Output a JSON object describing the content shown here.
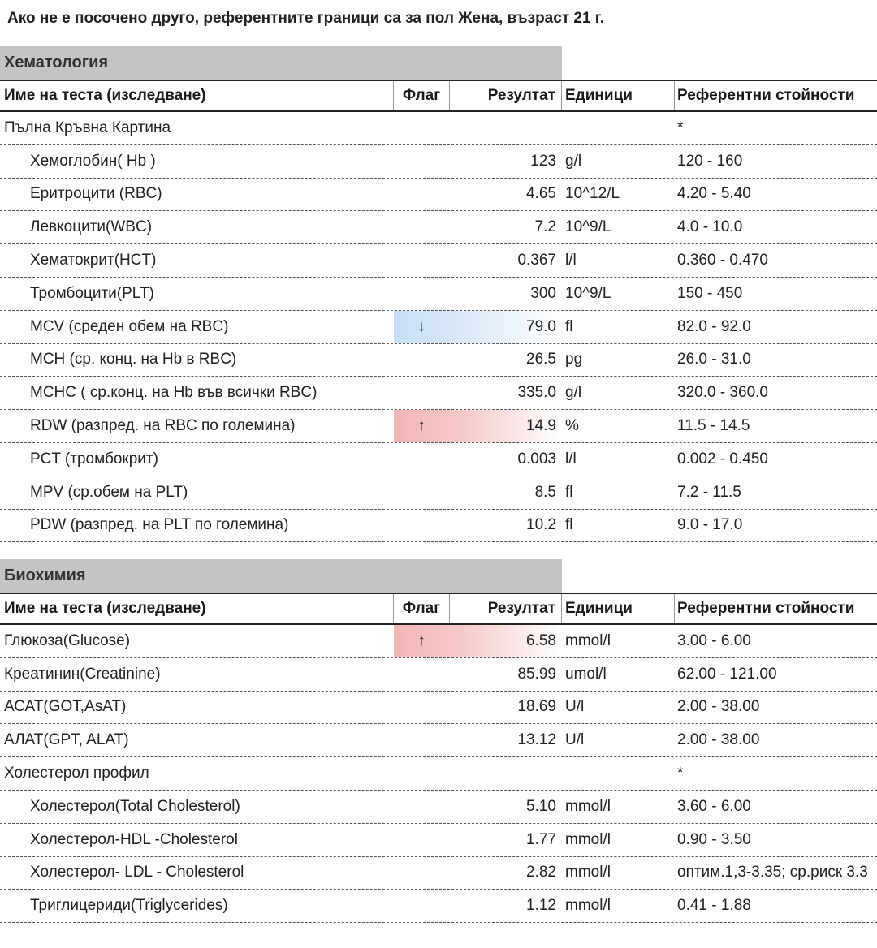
{
  "note": "Ако не е посочено друго, референтните граници са за пол Жена, възраст 21 г.",
  "columns": {
    "name": "Име на теста (изследване)",
    "flag": "Флаг",
    "result": "Резултат",
    "units": "Единици",
    "reference": "Референтни стойности"
  },
  "flag_colors": {
    "low": "#c7dff5",
    "high": "#f2b6b6"
  },
  "sections": [
    {
      "title": "Хематология",
      "rows": [
        {
          "name": "Пълна Кръвна Картина",
          "flag": "",
          "result": "",
          "units": "",
          "reference": "*",
          "sub": false,
          "level": ""
        },
        {
          "name": "Хемоглобин( Hb )",
          "flag": "",
          "result": "123",
          "units": "g/l",
          "reference": "120 - 160",
          "sub": true,
          "level": ""
        },
        {
          "name": "Еритроцити (RBC)",
          "flag": "",
          "result": "4.65",
          "units": "10^12/L",
          "reference": "4.20 - 5.40",
          "sub": true,
          "level": ""
        },
        {
          "name": "Левкоцити(WBC)",
          "flag": "",
          "result": "7.2",
          "units": "10^9/L",
          "reference": "4.0 - 10.0",
          "sub": true,
          "level": ""
        },
        {
          "name": "Хематокрит(HCT)",
          "flag": "",
          "result": "0.367",
          "units": "l/l",
          "reference": "0.360 - 0.470",
          "sub": true,
          "level": ""
        },
        {
          "name": "Тромбоцити(PLT)",
          "flag": "",
          "result": "300",
          "units": "10^9/L",
          "reference": "150 - 450",
          "sub": true,
          "level": ""
        },
        {
          "name": "MCV (среден обем на RBC)",
          "flag": "↓",
          "result": "79.0",
          "units": "fl",
          "reference": "82.0 - 92.0",
          "sub": true,
          "level": "low"
        },
        {
          "name": "MCH (ср. конц. на Hb в RBC)",
          "flag": "",
          "result": "26.5",
          "units": "pg",
          "reference": "26.0 - 31.0",
          "sub": true,
          "level": ""
        },
        {
          "name": "MCHC ( ср.конц. на Hb във всички RBC)",
          "flag": "",
          "result": "335.0",
          "units": "g/l",
          "reference": "320.0 - 360.0",
          "sub": true,
          "level": ""
        },
        {
          "name": "RDW (разпред. на RBC по големина)",
          "flag": "↑",
          "result": "14.9",
          "units": "%",
          "reference": "11.5 - 14.5",
          "sub": true,
          "level": "high"
        },
        {
          "name": "PCT (тромбокрит)",
          "flag": "",
          "result": "0.003",
          "units": "l/l",
          "reference": "0.002 - 0.450",
          "sub": true,
          "level": ""
        },
        {
          "name": "MPV (ср.обем на PLT)",
          "flag": "",
          "result": "8.5",
          "units": "fl",
          "reference": "7.2 - 11.5",
          "sub": true,
          "level": ""
        },
        {
          "name": "PDW (разпред. на PLT по големина)",
          "flag": "",
          "result": "10.2",
          "units": "fl",
          "reference": "9.0 - 17.0",
          "sub": true,
          "level": ""
        }
      ]
    },
    {
      "title": "Биохимия",
      "rows": [
        {
          "name": "Глюкоза(Glucose)",
          "flag": "↑",
          "result": "6.58",
          "units": "mmol/l",
          "reference": "3.00 - 6.00",
          "sub": false,
          "level": "high"
        },
        {
          "name": "Креатинин(Creatinine)",
          "flag": "",
          "result": "85.99",
          "units": "umol/l",
          "reference": "62.00 - 121.00",
          "sub": false,
          "level": ""
        },
        {
          "name": "АСАТ(GOT,AsAT)",
          "flag": "",
          "result": "18.69",
          "units": "U/l",
          "reference": "2.00 - 38.00",
          "sub": false,
          "level": ""
        },
        {
          "name": "АЛАТ(GPT, ALAT)",
          "flag": "",
          "result": "13.12",
          "units": "U/l",
          "reference": "2.00 - 38.00",
          "sub": false,
          "level": ""
        },
        {
          "name": "Холестерол профил",
          "flag": "",
          "result": "",
          "units": "",
          "reference": "*",
          "sub": false,
          "level": ""
        },
        {
          "name": "Холестерол(Total Cholesterol)",
          "flag": "",
          "result": "5.10",
          "units": "mmol/l",
          "reference": "3.60 - 6.00",
          "sub": true,
          "level": ""
        },
        {
          "name": "Холестерол-HDL -Cholesterol",
          "flag": "",
          "result": "1.77",
          "units": "mmol/l",
          "reference": "0.90 - 3.50",
          "sub": true,
          "level": ""
        },
        {
          "name": "Холестерол- LDL - Cholesterol",
          "flag": "",
          "result": "2.82",
          "units": "mmol/l",
          "reference": "оптим.1,3-3.35; ср.риск 3.3",
          "sub": true,
          "level": ""
        },
        {
          "name": "Триглицериди(Triglycerides)",
          "flag": "",
          "result": "1.12",
          "units": "mmol/l",
          "reference": "0.41 - 1.88",
          "sub": true,
          "level": ""
        }
      ]
    }
  ]
}
